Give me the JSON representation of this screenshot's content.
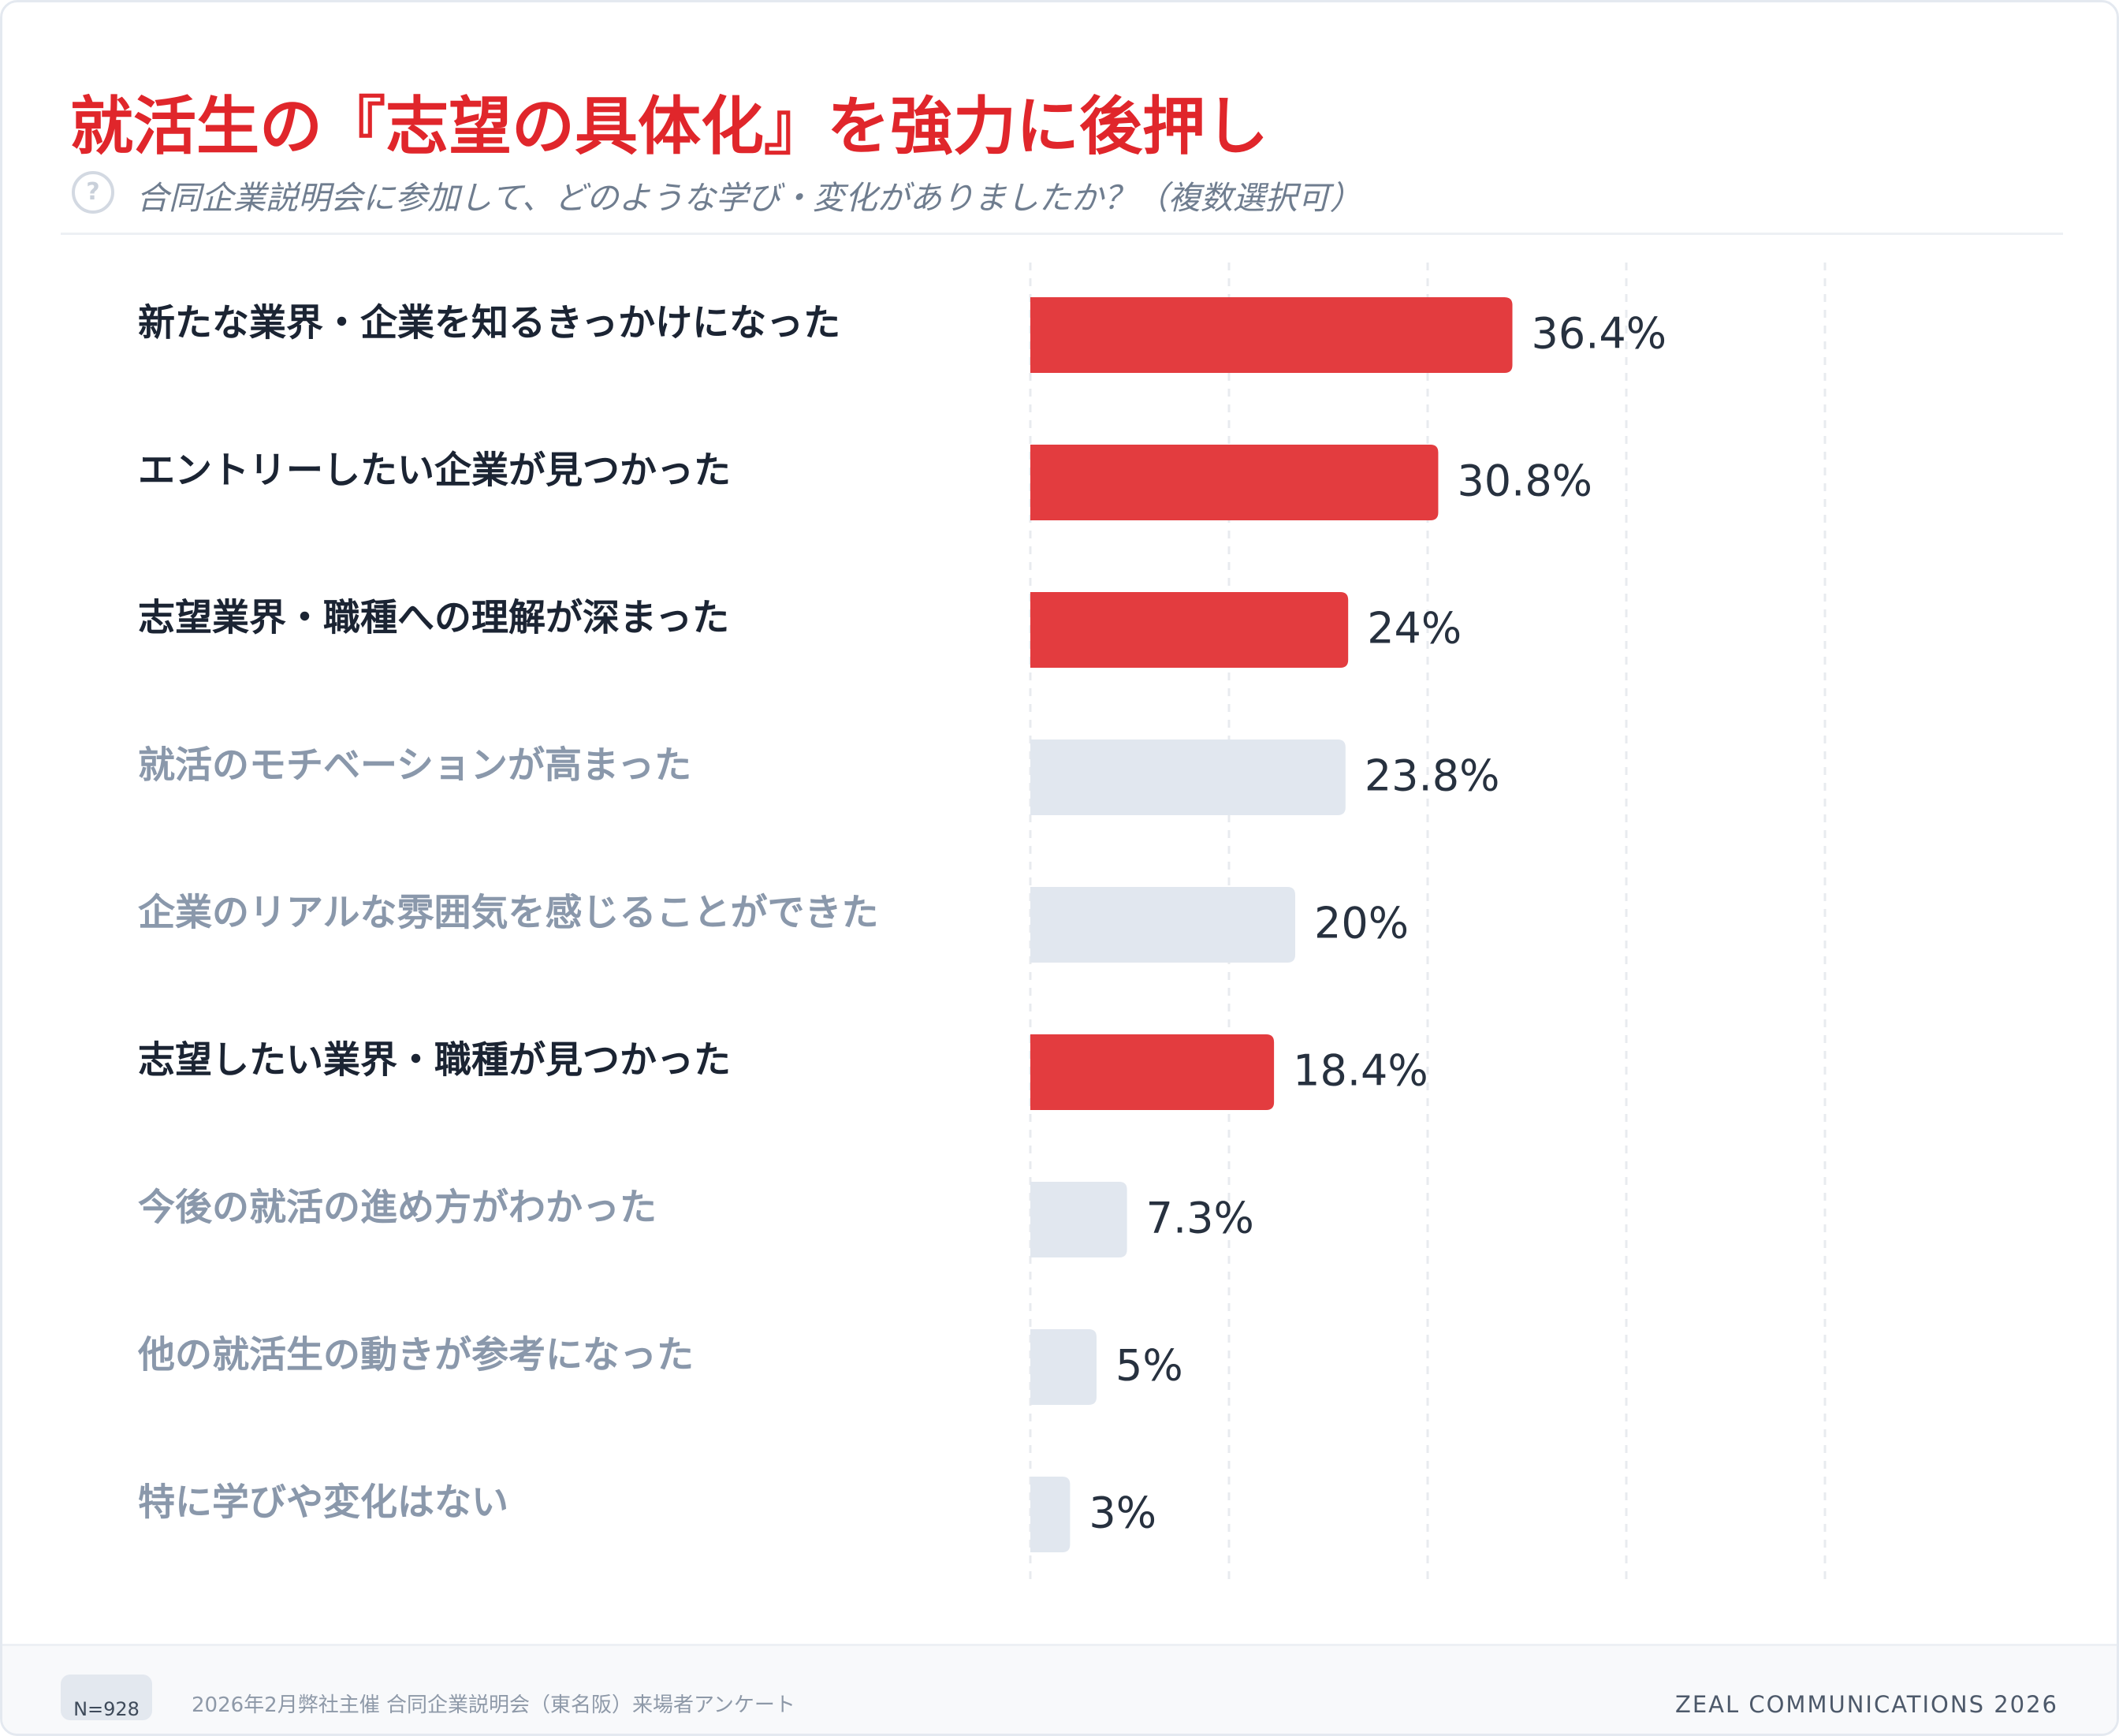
{
  "header": {
    "title": "就活生の『志望の具体化』を強力に後押し",
    "question_icon": "question-circle-icon",
    "subtitle": "合同企業説明会に参加して、どのような学び・変化がありましたか？（複数選択可）"
  },
  "chart_data": {
    "type": "bar",
    "orientation": "horizontal",
    "title": "就活生の『志望の具体化』を強力に後押し",
    "xlim": [
      0,
      60
    ],
    "grid": true,
    "categories": [
      "新たな業界・企業を知るきっかけになった",
      "エントリーしたい企業が見つかった",
      "志望業界・職種への理解が深まった",
      "就活のモチベーションが高まった",
      "企業のリアルな雰囲気を感じることができた",
      "志望したい業界・職種が見つかった",
      "今後の就活の進め方がわかった",
      "他の就活生の動きが参考になった",
      "特に学びや変化はない"
    ],
    "values": [
      36.4,
      30.8,
      24,
      23.8,
      20,
      18.4,
      7.3,
      5,
      3
    ],
    "value_labels": [
      "36.4%",
      "30.8%",
      "24%",
      "23.8%",
      "20%",
      "18.4%",
      "7.3%",
      "5%",
      "3%"
    ],
    "highlighted": [
      true,
      true,
      true,
      false,
      false,
      true,
      false,
      false,
      false
    ],
    "colors": {
      "highlight_bar": "#e33c3f",
      "muted_bar": "#e1e7ef",
      "highlight_label": "#1b2433",
      "muted_label": "#8a98ab",
      "value_label": "#27313f",
      "grid": "#e8ebef"
    }
  },
  "footer": {
    "sample_size": "N=928",
    "source": "2026年2月弊社主催 合同企業説明会（東名阪）来場者アンケート",
    "brand": "ZEAL COMMUNICATIONS 2026"
  }
}
